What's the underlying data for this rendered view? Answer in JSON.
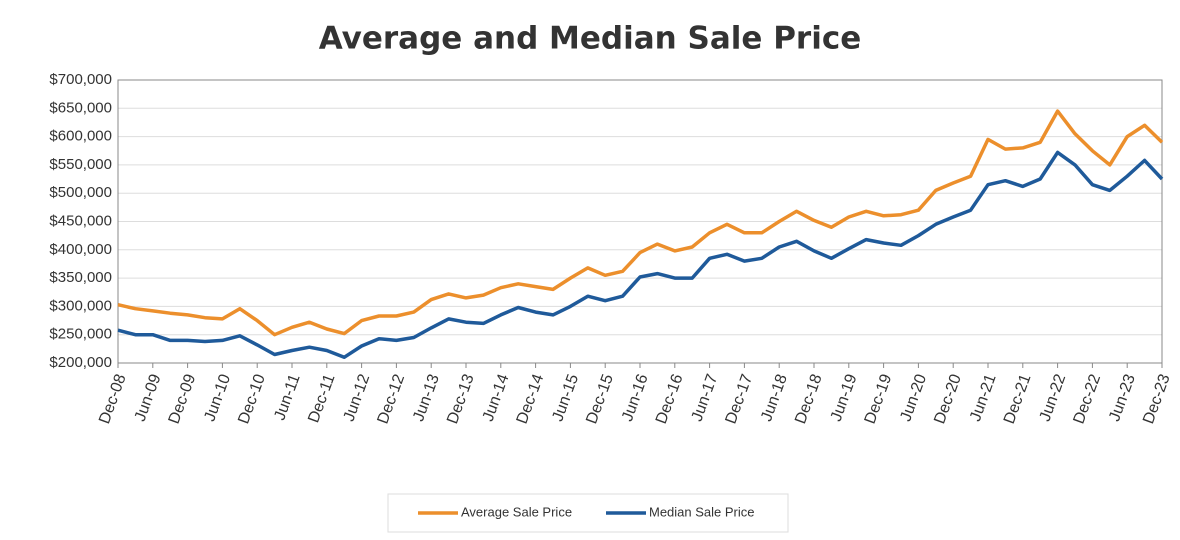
{
  "chart_data": {
    "type": "line",
    "title": "Average and Median Sale Price",
    "categories": [
      "Dec-08",
      null,
      "Jun-09",
      null,
      "Dec-09",
      null,
      "Jun-10",
      null,
      "Dec-10",
      null,
      "Jun-11",
      null,
      "Dec-11",
      null,
      "Jun-12",
      null,
      "Dec-12",
      null,
      "Jun-13",
      null,
      "Dec-13",
      null,
      "Jun-14",
      null,
      "Dec-14",
      null,
      "Jun-15",
      null,
      "Dec-15",
      null,
      "Jun-16",
      null,
      "Dec-16",
      null,
      "Jun-17",
      null,
      "Dec-17",
      null,
      "Jun-18",
      null,
      "Dec-18",
      null,
      "Jun-19",
      null,
      "Dec-19",
      null,
      "Jun-20",
      null,
      "Dec-20",
      null,
      "Jun-21",
      null,
      "Dec-21",
      null,
      "Jun-22",
      null,
      "Dec-22",
      null,
      "Jun-23",
      null,
      "Dec-23"
    ],
    "series": [
      {
        "name": "Average Sale Price",
        "color": "#ec8f2c",
        "values": [
          303000,
          296000,
          292000,
          288000,
          285000,
          280000,
          278000,
          296000,
          275000,
          250000,
          263000,
          272000,
          260000,
          252000,
          275000,
          283000,
          283000,
          290000,
          312000,
          322000,
          315000,
          320000,
          333000,
          340000,
          335000,
          330000,
          350000,
          368000,
          355000,
          362000,
          395000,
          410000,
          398000,
          405000,
          430000,
          445000,
          430000,
          430000,
          450000,
          468000,
          452000,
          440000,
          458000,
          468000,
          460000,
          462000,
          470000,
          505000,
          518000,
          530000,
          595000,
          578000,
          580000,
          590000,
          645000,
          605000,
          575000,
          550000,
          600000,
          620000,
          590000
        ]
      },
      {
        "name": "Median Sale Price",
        "color": "#1f5a9a",
        "values": [
          258000,
          250000,
          250000,
          240000,
          240000,
          238000,
          240000,
          248000,
          232000,
          215000,
          222000,
          228000,
          222000,
          210000,
          230000,
          243000,
          240000,
          245000,
          262000,
          278000,
          272000,
          270000,
          285000,
          298000,
          290000,
          285000,
          300000,
          318000,
          310000,
          318000,
          352000,
          358000,
          350000,
          350000,
          385000,
          392000,
          380000,
          385000,
          405000,
          415000,
          398000,
          385000,
          402000,
          418000,
          412000,
          408000,
          425000,
          445000,
          458000,
          470000,
          515000,
          522000,
          512000,
          525000,
          572000,
          550000,
          515000,
          505000,
          530000,
          558000,
          525000
        ]
      }
    ],
    "ylim": [
      200000,
      700000
    ],
    "yticks": [
      {
        "value": 200000,
        "label": "$200,000"
      },
      {
        "value": 250000,
        "label": "$250,000"
      },
      {
        "value": 300000,
        "label": "$300,000"
      },
      {
        "value": 350000,
        "label": "$350,000"
      },
      {
        "value": 400000,
        "label": "$400,000"
      },
      {
        "value": 450000,
        "label": "$450,000"
      },
      {
        "value": 500000,
        "label": "$500,000"
      },
      {
        "value": 550000,
        "label": "$550,000"
      },
      {
        "value": 600000,
        "label": "$600,000"
      },
      {
        "value": 650000,
        "label": "$650,000"
      },
      {
        "value": 700000,
        "label": "$700,000"
      }
    ],
    "grid": true
  }
}
